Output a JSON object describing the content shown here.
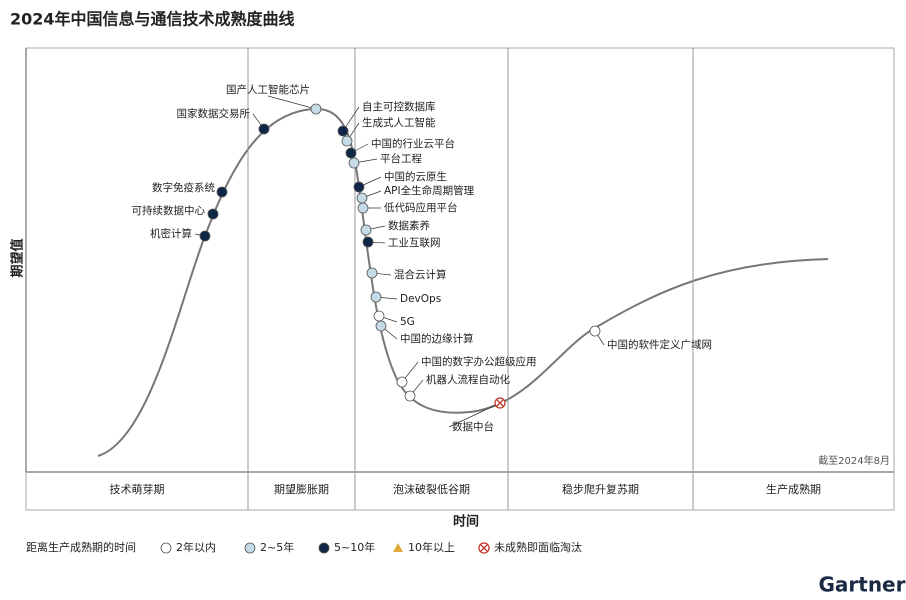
{
  "title": "2024年中国信息与通信技术成熟度曲线",
  "y_axis_label": "期望值",
  "x_axis_label": "时间",
  "as_of": "截至2024年8月",
  "phases": [
    "技术萌芽期",
    "期望膨胀期",
    "泡沫破裂低谷期",
    "稳步爬升复苏期",
    "生产成熟期"
  ],
  "legend": {
    "title": "距离生产成熟期的时间",
    "items": [
      {
        "label": "2年以内",
        "color": "#ffffff",
        "shape": "circle"
      },
      {
        "label": "2~5年",
        "color": "#c5dbe8",
        "shape": "circle"
      },
      {
        "label": "5~10年",
        "color": "#0f2747",
        "shape": "circle"
      },
      {
        "label": "10年以上",
        "color": "#e0a93a",
        "shape": "triangle"
      },
      {
        "label": "未成熟即面临淘汰",
        "color": "#c0392b",
        "shape": "cross"
      }
    ]
  },
  "technologies": [
    {
      "label": "机密计算",
      "maturity": "5~10年"
    },
    {
      "label": "可持续数据中心",
      "maturity": "5~10年"
    },
    {
      "label": "数字免疫系统",
      "maturity": "5~10年"
    },
    {
      "label": "国家数据交易所",
      "maturity": "5~10年"
    },
    {
      "label": "国产人工智能芯片",
      "maturity": "2~5年"
    },
    {
      "label": "自主可控数据库",
      "maturity": "5~10年"
    },
    {
      "label": "生成式人工智能",
      "maturity": "2~5年"
    },
    {
      "label": "中国的行业云平台",
      "maturity": "5~10年"
    },
    {
      "label": "平台工程",
      "maturity": "2~5年"
    },
    {
      "label": "中国的云原生",
      "maturity": "5~10年"
    },
    {
      "label": "API全生命周期管理",
      "maturity": "2~5年"
    },
    {
      "label": "低代码应用平台",
      "maturity": "2~5年"
    },
    {
      "label": "数据素养",
      "maturity": "2~5年"
    },
    {
      "label": "工业互联网",
      "maturity": "5~10年"
    },
    {
      "label": "混合云计算",
      "maturity": "2~5年"
    },
    {
      "label": "DevOps",
      "maturity": "2~5年"
    },
    {
      "label": "5G",
      "maturity": "2年以内"
    },
    {
      "label": "中国的边缘计算",
      "maturity": "2~5年"
    },
    {
      "label": "中国的数字办公超级应用",
      "maturity": "2年以内"
    },
    {
      "label": "机器人流程自动化",
      "maturity": "2年以内"
    },
    {
      "label": "数据中台",
      "maturity": "未成熟即面临淘汰"
    },
    {
      "label": "中国的软件定义广域网",
      "maturity": "2年以内"
    }
  ],
  "brand": "Gartner"
}
